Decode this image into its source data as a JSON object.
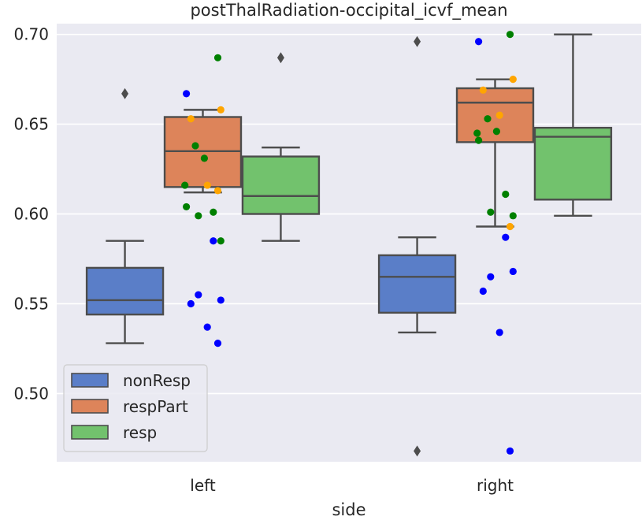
{
  "chart_data": {
    "type": "box",
    "title": "postThalRadiation-occipital_icvf_mean",
    "xlabel": "side",
    "ylabel": "",
    "categories": [
      "left",
      "right"
    ],
    "ylim": [
      0.462,
      0.706
    ],
    "yticks": [
      0.5,
      0.55,
      0.6,
      0.65,
      0.7
    ],
    "ytick_labels": [
      "0.50",
      "0.55",
      "0.60",
      "0.65",
      "0.70"
    ],
    "grid": true,
    "legend_position": "bottom-left",
    "series": [
      {
        "name": "nonResp",
        "color": "#5a7ec8",
        "point_color": "#0000ff",
        "boxes": [
          {
            "category": "left",
            "whisker_low": 0.528,
            "q1": 0.544,
            "median": 0.552,
            "q3": 0.57,
            "whisker_high": 0.585,
            "outliers": [
              0.667
            ],
            "points": [
              0.667,
              0.585,
              0.555,
              0.552,
              0.55,
              0.537,
              0.528
            ]
          },
          {
            "category": "right",
            "whisker_low": 0.534,
            "q1": 0.545,
            "median": 0.565,
            "q3": 0.577,
            "whisker_high": 0.587,
            "outliers": [
              0.696,
              0.468
            ],
            "points": [
              0.696,
              0.587,
              0.565,
              0.568,
              0.557,
              0.534,
              0.468
            ]
          }
        ]
      },
      {
        "name": "respPart",
        "color": "#dd845a",
        "point_color": "#ffa500",
        "boxes": [
          {
            "category": "left",
            "whisker_low": 0.612,
            "q1": 0.615,
            "median": 0.635,
            "q3": 0.654,
            "whisker_high": 0.658,
            "outliers": [],
            "points": [
              0.658,
              0.653,
              0.616,
              0.613
            ]
          },
          {
            "category": "right",
            "whisker_low": 0.593,
            "q1": 0.64,
            "median": 0.662,
            "q3": 0.67,
            "whisker_high": 0.675,
            "outliers": [],
            "points": [
              0.675,
              0.669,
              0.655,
              0.593
            ]
          }
        ]
      },
      {
        "name": "resp",
        "color": "#72c26d",
        "point_color": "#008000",
        "boxes": [
          {
            "category": "left",
            "whisker_low": 0.585,
            "q1": 0.6,
            "median": 0.61,
            "q3": 0.632,
            "whisker_high": 0.637,
            "outliers": [
              0.687
            ],
            "points": [
              0.687,
              0.638,
              0.631,
              0.616,
              0.604,
              0.601,
              0.599,
              0.585
            ]
          },
          {
            "category": "right",
            "whisker_low": 0.599,
            "q1": 0.608,
            "median": 0.643,
            "q3": 0.648,
            "whisker_high": 0.7,
            "outliers": [],
            "points": [
              0.7,
              0.653,
              0.646,
              0.645,
              0.641,
              0.611,
              0.601,
              0.599
            ]
          }
        ]
      }
    ]
  }
}
